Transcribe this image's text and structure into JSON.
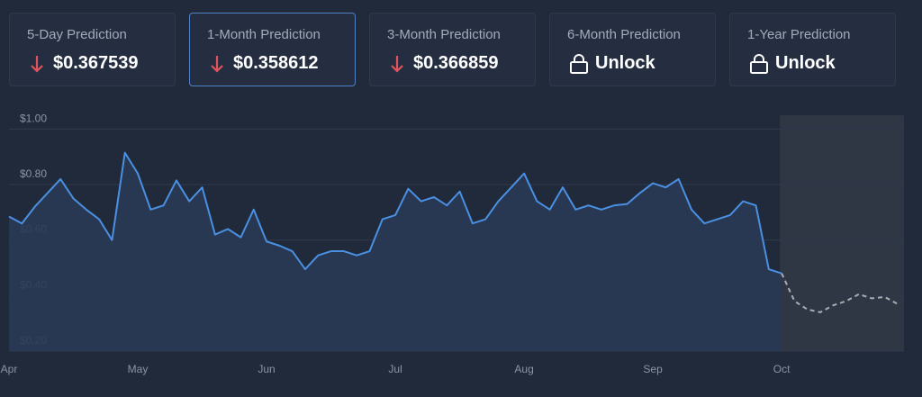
{
  "cards": [
    {
      "label": "5-Day Prediction",
      "value": "$0.367539"
    },
    {
      "label": "1-Month Prediction",
      "value": "$0.358612"
    },
    {
      "label": "3-Month Prediction",
      "value": "$0.366859"
    },
    {
      "label": "6-Month Prediction",
      "value": "Unlock"
    },
    {
      "label": "1-Year Prediction",
      "value": "Unlock"
    }
  ],
  "chart_data": {
    "type": "line",
    "categories": [
      "Apr",
      null,
      null,
      null,
      null,
      null,
      null,
      null,
      null,
      null,
      "May",
      null,
      null,
      null,
      null,
      null,
      null,
      null,
      null,
      null,
      "Jun",
      null,
      null,
      null,
      null,
      null,
      null,
      null,
      null,
      null,
      "Jul",
      null,
      null,
      null,
      null,
      null,
      null,
      null,
      null,
      null,
      "Aug",
      null,
      null,
      null,
      null,
      null,
      null,
      null,
      null,
      null,
      "Sep",
      null,
      null,
      null,
      null,
      null,
      null,
      null,
      null,
      null,
      "Oct",
      null,
      null,
      null,
      null,
      null,
      null,
      null,
      null,
      null
    ],
    "series": [
      {
        "color": "#4a90e2",
        "values": [
          0.685,
          0.66,
          0.72,
          0.77,
          0.82,
          0.75,
          0.71,
          0.675,
          0.6,
          0.915,
          0.84,
          0.71,
          0.725,
          0.815,
          0.74,
          0.79,
          0.62,
          0.64,
          0.61,
          0.71,
          0.595,
          0.58,
          0.56,
          0.495,
          0.545,
          0.56,
          0.56,
          0.545,
          0.56,
          0.675,
          0.69,
          0.785,
          0.74,
          0.755,
          0.725,
          0.775,
          0.66,
          0.675,
          0.74,
          0.79,
          0.84,
          0.74,
          0.71,
          0.79,
          0.71,
          0.725,
          0.71,
          0.725,
          0.73,
          0.77,
          0.805,
          0.79,
          0.82,
          0.71,
          0.66,
          0.675,
          0.69,
          0.74,
          0.725,
          0.495,
          0.48,
          null,
          null,
          null,
          null,
          null,
          null,
          null,
          null,
          null
        ]
      },
      {
        "color": "#a8adb5",
        "values": [
          null,
          null,
          null,
          null,
          null,
          null,
          null,
          null,
          null,
          null,
          null,
          null,
          null,
          null,
          null,
          null,
          null,
          null,
          null,
          null,
          null,
          null,
          null,
          null,
          null,
          null,
          null,
          null,
          null,
          null,
          null,
          null,
          null,
          null,
          null,
          null,
          null,
          null,
          null,
          null,
          null,
          null,
          null,
          null,
          null,
          null,
          null,
          null,
          null,
          null,
          null,
          null,
          null,
          null,
          null,
          null,
          null,
          null,
          null,
          null,
          0.48,
          0.38,
          0.35,
          0.34,
          0.365,
          0.38,
          0.405,
          0.39,
          0.395,
          0.37
        ]
      }
    ],
    "ylim": [
      0.2,
      1.05
    ],
    "yticks": [
      {
        "value": 0.2,
        "label": "$0.20"
      },
      {
        "value": 0.4,
        "label": "$0.40"
      },
      {
        "value": 0.6,
        "label": "$0.60"
      },
      {
        "value": 0.8,
        "label": "$0.80"
      },
      {
        "value": 1,
        "label": "$1.00"
      }
    ],
    "grid": true
  }
}
